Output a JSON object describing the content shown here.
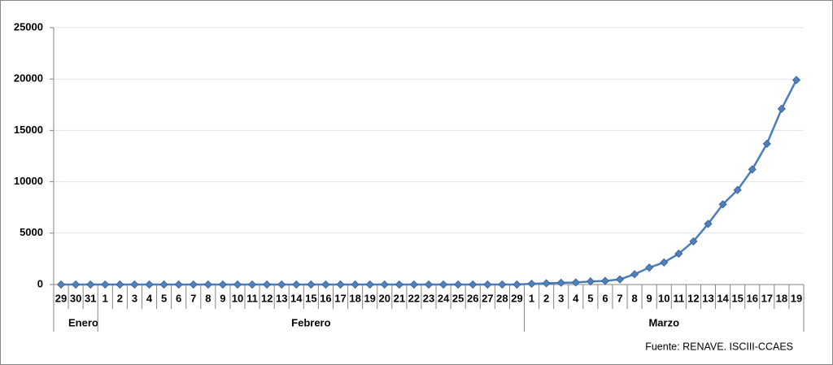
{
  "chart_data": {
    "type": "line",
    "groups": [
      {
        "label": "Enero",
        "categories": [
          "29",
          "30",
          "31"
        ]
      },
      {
        "label": "Febrero",
        "categories": [
          "1",
          "2",
          "3",
          "4",
          "5",
          "6",
          "7",
          "8",
          "9",
          "10",
          "11",
          "12",
          "13",
          "14",
          "15",
          "16",
          "17",
          "18",
          "19",
          "20",
          "21",
          "22",
          "23",
          "24",
          "25",
          "26",
          "27",
          "28",
          "29"
        ]
      },
      {
        "label": "Marzo",
        "categories": [
          "1",
          "2",
          "3",
          "4",
          "5",
          "6",
          "7",
          "8",
          "9",
          "10",
          "11",
          "12",
          "13",
          "14",
          "15",
          "16",
          "17",
          "18",
          "19"
        ]
      }
    ],
    "series": [
      {
        "color": "#4a7ebb",
        "marker_color": "#4f81bd",
        "values": [
          0,
          0,
          0,
          0,
          0,
          0,
          0,
          0,
          0,
          0,
          0,
          0,
          0,
          0,
          0,
          0,
          0,
          0,
          0,
          0,
          0,
          0,
          0,
          0,
          0,
          0,
          0,
          0,
          0,
          0,
          0,
          0,
          70,
          120,
          170,
          200,
          300,
          350,
          500,
          1000,
          1650,
          2150,
          3000,
          4200,
          5900,
          7800,
          9200,
          11200,
          13700,
          17100,
          19900
        ]
      }
    ],
    "ylim": [
      0,
      25000
    ],
    "yticks": [
      0,
      5000,
      10000,
      15000,
      20000,
      25000
    ],
    "grid": true,
    "annotation": "Fuente: RENAVE. ISCIII-CCAES"
  }
}
